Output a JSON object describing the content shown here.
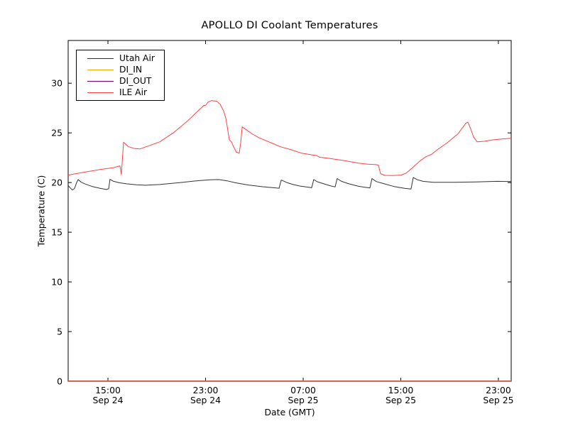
{
  "chart_data": {
    "type": "line",
    "title": "APOLLO DI Coolant Temperatures",
    "xlabel": "Date (GMT)",
    "ylabel": "Temperature (C)",
    "grid": false,
    "x_axis": {
      "unit": "hours since Sep 24 00:00 GMT",
      "range": [
        11.74,
        48.05
      ],
      "ticks": [
        {
          "value": 15,
          "time": "15:00",
          "date": "Sep 24"
        },
        {
          "value": 23,
          "time": "23:00",
          "date": "Sep 24"
        },
        {
          "value": 31,
          "time": "07:00",
          "date": "Sep 25"
        },
        {
          "value": 39,
          "time": "15:00",
          "date": "Sep 25"
        },
        {
          "value": 47,
          "time": "23:00",
          "date": "Sep 25"
        }
      ]
    },
    "y_axis": {
      "range": [
        0,
        34.3
      ],
      "ticks": [
        0,
        5,
        10,
        15,
        20,
        25,
        30
      ]
    },
    "legend": {
      "position": "upper-left",
      "entries": [
        "Utah Air",
        "DI_IN",
        "DI_OUT",
        "ILE Air"
      ]
    },
    "series": [
      {
        "name": "Utah Air",
        "color": "#333333",
        "points": [
          [
            11.74,
            19.7
          ],
          [
            11.92,
            19.45
          ],
          [
            12.09,
            19.25
          ],
          [
            12.26,
            19.4
          ],
          [
            12.44,
            20.0
          ],
          [
            12.56,
            20.3
          ],
          [
            12.79,
            20.05
          ],
          [
            13.14,
            19.85
          ],
          [
            13.72,
            19.6
          ],
          [
            14.36,
            19.42
          ],
          [
            14.88,
            19.3
          ],
          [
            15.06,
            19.38
          ],
          [
            15.17,
            20.32
          ],
          [
            15.46,
            20.12
          ],
          [
            15.93,
            19.98
          ],
          [
            16.51,
            19.87
          ],
          [
            17.33,
            19.78
          ],
          [
            18.08,
            19.73
          ],
          [
            19.25,
            19.8
          ],
          [
            20.7,
            19.97
          ],
          [
            22.16,
            20.16
          ],
          [
            23.32,
            20.28
          ],
          [
            24.08,
            20.3
          ],
          [
            24.77,
            20.17
          ],
          [
            25.47,
            19.97
          ],
          [
            26.52,
            19.75
          ],
          [
            27.68,
            19.58
          ],
          [
            28.56,
            19.48
          ],
          [
            29.02,
            19.43
          ],
          [
            29.2,
            20.25
          ],
          [
            29.31,
            20.2
          ],
          [
            29.66,
            20.0
          ],
          [
            30.13,
            19.82
          ],
          [
            30.71,
            19.65
          ],
          [
            31.29,
            19.55
          ],
          [
            31.7,
            19.48
          ],
          [
            31.87,
            20.3
          ],
          [
            32.16,
            20.08
          ],
          [
            32.63,
            19.9
          ],
          [
            33.21,
            19.68
          ],
          [
            33.62,
            19.56
          ],
          [
            33.79,
            20.4
          ],
          [
            34.14,
            20.12
          ],
          [
            34.67,
            19.9
          ],
          [
            35.54,
            19.62
          ],
          [
            36.47,
            19.45
          ],
          [
            36.64,
            20.4
          ],
          [
            36.99,
            20.1
          ],
          [
            37.57,
            19.9
          ],
          [
            38.45,
            19.6
          ],
          [
            39.32,
            19.42
          ],
          [
            39.84,
            19.35
          ],
          [
            40.02,
            20.5
          ],
          [
            40.37,
            20.28
          ],
          [
            40.83,
            20.12
          ],
          [
            41.65,
            20.03
          ],
          [
            43.39,
            20.02
          ],
          [
            45.14,
            20.06
          ],
          [
            46.88,
            20.12
          ],
          [
            48.05,
            20.1
          ]
        ]
      },
      {
        "name": "DI_IN",
        "color": "#ffa500",
        "points": [
          [
            11.74,
            0
          ],
          [
            48.05,
            0
          ]
        ]
      },
      {
        "name": "DI_OUT",
        "color": "#800080",
        "points": [
          [
            11.74,
            0
          ],
          [
            48.05,
            0
          ]
        ]
      },
      {
        "name": "ILE Air",
        "color": "#ff4040",
        "points": [
          [
            11.74,
            20.75
          ],
          [
            12.85,
            21.0
          ],
          [
            14.3,
            21.3
          ],
          [
            15.46,
            21.5
          ],
          [
            15.99,
            21.68
          ],
          [
            16.1,
            20.8
          ],
          [
            16.28,
            24.05
          ],
          [
            16.69,
            23.6
          ],
          [
            17.21,
            23.42
          ],
          [
            17.62,
            23.38
          ],
          [
            18.37,
            23.7
          ],
          [
            19.25,
            24.1
          ],
          [
            20.41,
            25.05
          ],
          [
            21.57,
            26.25
          ],
          [
            22.45,
            27.3
          ],
          [
            22.85,
            27.75
          ],
          [
            23.03,
            27.8
          ],
          [
            23.2,
            28.1
          ],
          [
            23.49,
            28.25
          ],
          [
            23.9,
            28.2
          ],
          [
            24.19,
            27.9
          ],
          [
            24.48,
            27.2
          ],
          [
            24.66,
            26.5
          ],
          [
            24.83,
            25.2
          ],
          [
            24.95,
            24.3
          ],
          [
            25.12,
            24.1
          ],
          [
            25.3,
            23.6
          ],
          [
            25.53,
            23.05
          ],
          [
            25.76,
            22.95
          ],
          [
            25.88,
            24.0
          ],
          [
            26.0,
            25.6
          ],
          [
            26.29,
            25.35
          ],
          [
            26.81,
            24.9
          ],
          [
            27.39,
            24.5
          ],
          [
            28.27,
            24.05
          ],
          [
            29.14,
            23.6
          ],
          [
            30.01,
            23.3
          ],
          [
            30.88,
            22.95
          ],
          [
            31.76,
            22.78
          ],
          [
            32.11,
            22.72
          ],
          [
            32.34,
            22.55
          ],
          [
            33.21,
            22.42
          ],
          [
            34.38,
            22.2
          ],
          [
            35.54,
            21.95
          ],
          [
            36.29,
            21.85
          ],
          [
            36.99,
            21.8
          ],
          [
            37.17,
            21.75
          ],
          [
            37.34,
            20.9
          ],
          [
            37.69,
            20.72
          ],
          [
            38.27,
            20.7
          ],
          [
            39.03,
            20.75
          ],
          [
            39.44,
            20.95
          ],
          [
            39.79,
            21.3
          ],
          [
            40.19,
            21.75
          ],
          [
            40.6,
            22.2
          ],
          [
            41.06,
            22.6
          ],
          [
            41.53,
            22.85
          ],
          [
            42.0,
            23.3
          ],
          [
            42.81,
            24.0
          ],
          [
            43.68,
            24.9
          ],
          [
            44.32,
            25.95
          ],
          [
            44.5,
            26.1
          ],
          [
            44.73,
            25.4
          ],
          [
            44.96,
            24.6
          ],
          [
            45.25,
            24.1
          ],
          [
            45.84,
            24.15
          ],
          [
            46.59,
            24.3
          ],
          [
            47.47,
            24.4
          ],
          [
            48.05,
            24.45
          ]
        ]
      }
    ]
  }
}
